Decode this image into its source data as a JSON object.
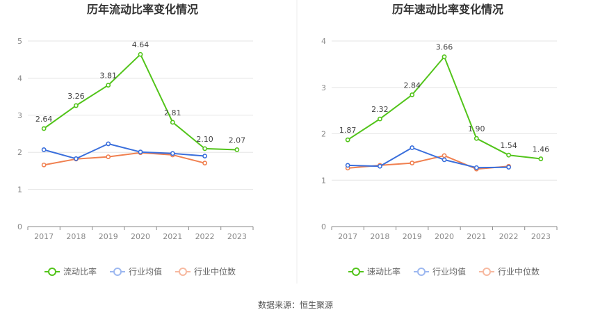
{
  "source": "数据来源：恒生聚源",
  "chart_data": [
    {
      "type": "line",
      "title": "历年流动比率变化情况",
      "categories": [
        "2017",
        "2018",
        "2019",
        "2020",
        "2021",
        "2022",
        "2023"
      ],
      "ylim": [
        0,
        5
      ],
      "yticks": [
        "0",
        "1",
        "2",
        "3",
        "4",
        "5"
      ],
      "grid": true,
      "legend_position": "bottom",
      "series": [
        {
          "name": "流动比率",
          "color": "#52c41a",
          "values": [
            2.64,
            3.26,
            3.81,
            4.64,
            2.81,
            2.1,
            2.07
          ],
          "labels": [
            "2.64",
            "3.26",
            "3.81",
            "4.64",
            "2.81",
            "2.10",
            "2.07"
          ]
        },
        {
          "name": "行业均值",
          "color": "#3a6fdc",
          "values": [
            2.07,
            1.83,
            2.23,
            2.01,
            1.97,
            1.9,
            null
          ]
        },
        {
          "name": "行业中位数",
          "color": "#f08050",
          "values": [
            1.66,
            1.82,
            1.88,
            1.99,
            1.93,
            1.71,
            null
          ]
        }
      ]
    },
    {
      "type": "line",
      "title": "历年速动比率变化情况",
      "categories": [
        "2017",
        "2018",
        "2019",
        "2020",
        "2021",
        "2022",
        "2023"
      ],
      "ylim": [
        0,
        4
      ],
      "yticks": [
        "0",
        "1",
        "2",
        "3",
        "4"
      ],
      "grid": true,
      "legend_position": "bottom",
      "series": [
        {
          "name": "速动比率",
          "color": "#52c41a",
          "values": [
            1.87,
            2.32,
            2.84,
            3.66,
            1.9,
            1.54,
            1.46
          ],
          "labels": [
            "1.87",
            "2.32",
            "2.84",
            "3.66",
            "1.90",
            "1.54",
            "1.46"
          ]
        },
        {
          "name": "行业均值",
          "color": "#3a6fdc",
          "values": [
            1.32,
            1.3,
            1.7,
            1.44,
            1.27,
            1.28,
            null
          ]
        },
        {
          "name": "行业中位数",
          "color": "#f08050",
          "values": [
            1.26,
            1.32,
            1.37,
            1.53,
            1.24,
            1.3,
            null
          ]
        }
      ]
    }
  ]
}
